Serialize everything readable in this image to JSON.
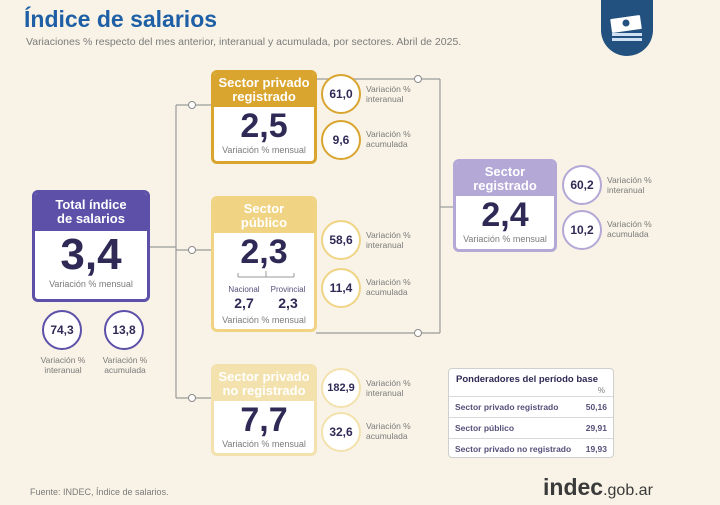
{
  "header": {
    "title": "Índice de salarios",
    "subtitle": "Variaciones % respecto del mes anterior, interanual y acumulada, por sectores. Abril de 2025."
  },
  "colors": {
    "purple": "#5c50a8",
    "gold": "#d9a52f",
    "lightgold": "#f0d484",
    "lavender": "#b3a8d6",
    "blue": "#1f5fa5"
  },
  "total": {
    "title_line1": "Total índice",
    "title_line2": "de salarios",
    "value": "3,4",
    "caption": "Variación % mensual",
    "interanual": "74,3",
    "acumulada": "13,8",
    "label_interanual": "Variación %\ninteranual",
    "label_acumulada": "Variación %\nacumulada"
  },
  "privado_registrado": {
    "title_line1": "Sector privado",
    "title_line2": "registrado",
    "value": "2,5",
    "caption": "Variación % mensual",
    "interanual": "61,0",
    "acumulada": "9,6",
    "label_interanual": "Variación %\ninteranual",
    "label_acumulada": "Variación %\nacumulada"
  },
  "publico": {
    "title_line1": "Sector",
    "title_line2": "público",
    "value": "2,3",
    "nacional_label": "Nacional",
    "nacional_value": "2,7",
    "provincial_label": "Provincial",
    "provincial_value": "2,3",
    "caption": "Variación % mensual",
    "interanual": "58,6",
    "acumulada": "11,4",
    "label_interanual": "Variación %\ninteranual",
    "label_acumulada": "Variación %\nacumulada"
  },
  "no_registrado": {
    "title_line1": "Sector privado",
    "title_line2": "no registrado",
    "value": "7,7",
    "caption": "Variación % mensual",
    "interanual": "182,9",
    "acumulada": "32,6",
    "label_interanual": "Variación %\ninteranual",
    "label_acumulada": "Variación %\nacumulada"
  },
  "registrado": {
    "title_line1": "Sector",
    "title_line2": "registrado",
    "value": "2,4",
    "caption": "Variación % mensual",
    "interanual": "60,2",
    "acumulada": "10,2",
    "label_interanual": "Variación %\ninteranual",
    "label_acumulada": "Variación %\nacumulada"
  },
  "ponderadores": {
    "title": "Ponderadores del período base",
    "unit": "%",
    "rows": [
      {
        "label": "Sector privado registrado",
        "value": "50,16"
      },
      {
        "label": "Sector público",
        "value": "29,91"
      },
      {
        "label": "Sector privado no registrado",
        "value": "19,93"
      }
    ]
  },
  "footer": {
    "source": "Fuente: INDEC, Índice de salarios.",
    "brand_main": "indec",
    "brand_suffix": ".gob.ar"
  }
}
